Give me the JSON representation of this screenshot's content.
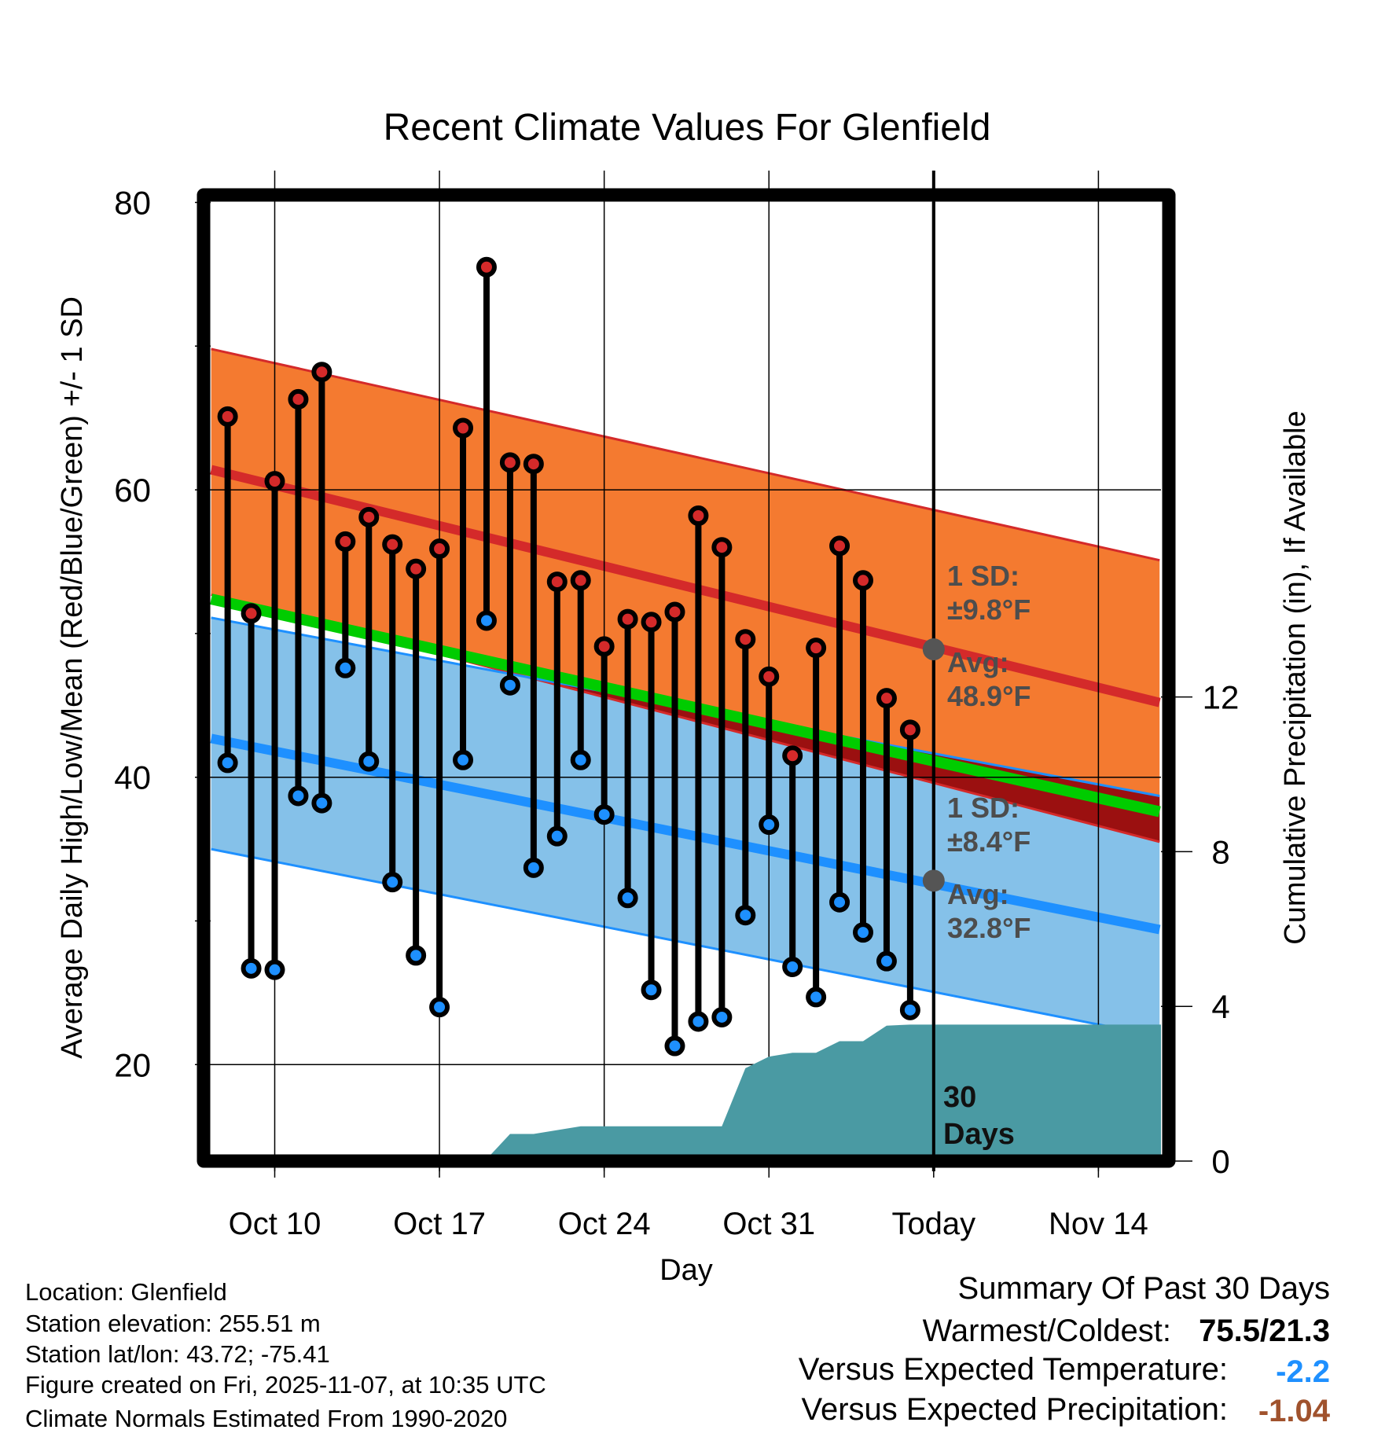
{
  "chart_data": {
    "type": "line",
    "title": "Recent Climate Values For Glenfield",
    "xlabel": "Day",
    "ylabel": "Average Daily High/Low/Mean (Red/Blue/Green) +/- 1 SD",
    "y2label": "Cumulative Precipitation (in), If Available",
    "ylim": [
      13.8,
      80
    ],
    "y2lim": [
      0,
      24.8
    ],
    "yticks": [
      "20",
      "40",
      "60",
      "80"
    ],
    "y2ticks": [
      "0",
      "4",
      "8",
      "12"
    ],
    "xticks": [
      {
        "label": "Oct 10",
        "day": 0
      },
      {
        "label": "Oct 17",
        "day": 7
      },
      {
        "label": "Oct 24",
        "day": 14
      },
      {
        "label": "Oct 31",
        "day": 21
      },
      {
        "label": "Today",
        "day": 28
      },
      {
        "label": "Nov 14",
        "day": 35
      }
    ],
    "days": [
      "Oct 8",
      "Oct 9",
      "Oct 10",
      "Oct 11",
      "Oct 12",
      "Oct 13",
      "Oct 14",
      "Oct 15",
      "Oct 16",
      "Oct 17",
      "Oct 18",
      "Oct 19",
      "Oct 20",
      "Oct 21",
      "Oct 22",
      "Oct 23",
      "Oct 24",
      "Oct 25",
      "Oct 26",
      "Oct 27",
      "Oct 28",
      "Oct 29",
      "Oct 30",
      "Oct 31",
      "Nov 1",
      "Nov 2",
      "Nov 3",
      "Nov 4",
      "Nov 5",
      "Nov 6"
    ],
    "series": [
      {
        "name": "Daily High",
        "values": [
          65.1,
          51.4,
          60.6,
          66.3,
          68.2,
          56.4,
          58.1,
          56.2,
          54.5,
          55.9,
          64.3,
          75.5,
          61.9,
          61.8,
          53.6,
          53.7,
          49.1,
          51.0,
          50.8,
          51.5,
          58.2,
          56.0,
          49.6,
          47.0,
          41.5,
          49.0,
          56.1,
          53.7,
          45.5,
          43.3
        ]
      },
      {
        "name": "Daily Low",
        "values": [
          41.0,
          26.7,
          26.6,
          38.7,
          38.2,
          47.6,
          41.1,
          32.7,
          27.6,
          24.0,
          41.2,
          50.9,
          46.4,
          33.7,
          35.9,
          41.2,
          37.4,
          31.6,
          25.2,
          21.3,
          23.0,
          23.3,
          30.4,
          36.7,
          26.8,
          24.7,
          31.3,
          29.2,
          27.2,
          23.8
        ]
      },
      {
        "name": "Cumulative Precipitation (in)",
        "values": [
          0,
          0,
          0,
          0,
          0.05,
          0.05,
          0.05,
          0.05,
          0.05,
          0.05,
          0.05,
          0.05,
          0.7,
          0.7,
          0.8,
          0.9,
          0.9,
          0.9,
          0.9,
          0.9,
          0.9,
          0.9,
          2.4,
          2.7,
          2.8,
          2.8,
          3.1,
          3.1,
          3.5,
          3.53
        ]
      }
    ],
    "normals": {
      "range_days": [
        -2.7,
        37.6
      ],
      "high_avg": [
        61.4,
        45.2
      ],
      "high_upper": [
        69.8,
        55.1
      ],
      "high_lower": [
        52.7,
        35.5
      ],
      "mean": [
        52.4,
        37.6
      ],
      "low_avg": [
        42.7,
        29.4
      ],
      "low_upper": [
        51.1,
        38.7
      ],
      "low_lower": [
        35.0,
        21.95
      ]
    },
    "precip_end": 3.53,
    "annotations": {
      "high_sd_label": "1 SD:",
      "high_sd_value": "±9.8°F",
      "high_avg_label": "Avg:",
      "high_avg_value": "48.9°F",
      "low_sd_label": "1 SD:",
      "low_sd_value": "±8.4°F",
      "low_avg_label": "Avg:",
      "low_avg_value": "32.8°F",
      "days_label_1": "30",
      "days_label_2": "Days"
    },
    "colors": {
      "high_band": "#f47a30",
      "low_band": "#85c1e9",
      "overlap": "#9b1010",
      "high_line": "#d42a2a",
      "low_line": "#1e90ff",
      "mean_line": "#00cc00",
      "precip": "#4a9aa3",
      "high_dot": "#d42a2a",
      "low_dot": "#1e90ff"
    }
  },
  "info": {
    "location": "Location: Glenfield",
    "elevation": "Station elevation: 255.51 m",
    "latlon": "Station lat/lon: 43.72; -75.41",
    "created": "Figure created on Fri, 2025-11-07, at 10:35 UTC",
    "normals": "Climate Normals Estimated From 1990-2020"
  },
  "summary": {
    "title": "Summary Of Past 30 Days",
    "warmest_label": "Warmest/Coldest:",
    "warmest_value": "75.5/21.3",
    "temp_label": "Versus Expected Temperature:",
    "temp_value": "-2.2",
    "temp_color": "#1e90ff",
    "precip_label": "Versus Expected Precipitation:",
    "precip_value": "-1.04",
    "precip_color": "#a0522d"
  }
}
